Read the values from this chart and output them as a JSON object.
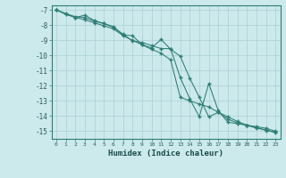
{
  "xlabel": "Humidex (Indice chaleur)",
  "xlim": [
    -0.5,
    23.5
  ],
  "ylim": [
    -15.5,
    -6.7
  ],
  "xticks": [
    0,
    1,
    2,
    3,
    4,
    5,
    6,
    7,
    8,
    9,
    10,
    11,
    12,
    13,
    14,
    15,
    16,
    17,
    18,
    19,
    20,
    21,
    22,
    23
  ],
  "yticks": [
    -7,
    -8,
    -9,
    -10,
    -11,
    -12,
    -13,
    -14,
    -15
  ],
  "bg_color": "#cce9ec",
  "grid_color": "#aad0d4",
  "line_color": "#2d7d75",
  "line1_x": [
    0,
    1,
    2,
    3,
    4,
    5,
    6,
    7,
    8,
    9,
    10,
    11,
    12,
    13,
    14,
    15,
    16,
    17,
    18,
    19,
    20,
    21,
    22,
    23
  ],
  "line1_y": [
    -7.0,
    -7.25,
    -7.45,
    -7.5,
    -7.75,
    -7.9,
    -8.15,
    -8.6,
    -9.05,
    -9.15,
    -9.35,
    -9.55,
    -9.55,
    -11.45,
    -12.85,
    -14.05,
    -11.85,
    -13.65,
    -14.4,
    -14.5,
    -14.6,
    -14.75,
    -14.95,
    -15.05
  ],
  "line2_x": [
    0,
    1,
    2,
    3,
    4,
    5,
    6,
    7,
    8,
    9,
    10,
    11,
    12,
    13,
    14,
    15,
    16,
    17,
    18,
    19,
    20,
    21,
    22,
    23
  ],
  "line2_y": [
    -7.0,
    -7.3,
    -7.5,
    -7.65,
    -7.85,
    -8.05,
    -8.25,
    -8.7,
    -9.0,
    -9.3,
    -9.6,
    -9.85,
    -10.3,
    -12.75,
    -13.0,
    -13.2,
    -13.4,
    -13.75,
    -14.05,
    -14.35,
    -14.6,
    -14.8,
    -14.9,
    -15.1
  ],
  "line3_x": [
    0,
    2,
    3,
    4,
    5,
    6,
    7,
    8,
    9,
    10,
    11,
    12,
    13,
    14,
    15,
    16,
    17,
    18,
    19,
    20,
    21,
    22,
    23
  ],
  "line3_y": [
    -7.0,
    -7.5,
    -7.35,
    -7.7,
    -7.9,
    -8.1,
    -8.65,
    -8.7,
    -9.3,
    -9.5,
    -8.95,
    -9.6,
    -10.05,
    -11.5,
    -12.75,
    -14.05,
    -13.75,
    -14.2,
    -14.45,
    -14.6,
    -14.7,
    -14.8,
    -15.0
  ]
}
